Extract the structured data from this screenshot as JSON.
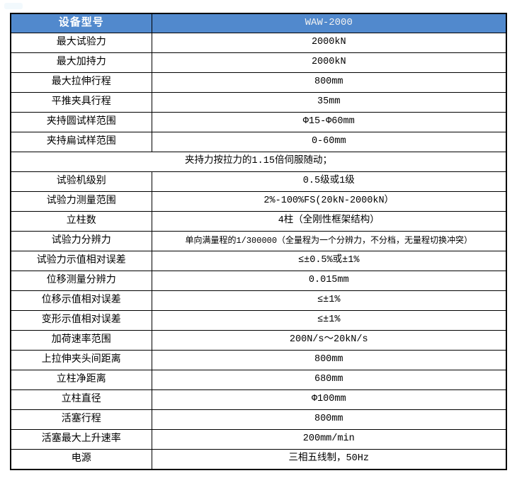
{
  "page": {
    "background_color": "#ffffff",
    "border_color": "#000000"
  },
  "table": {
    "header": {
      "label": "设备型号",
      "value": "WAW-2000",
      "background_color": "#5189cd",
      "text_color": "#ffffff"
    },
    "rows": [
      {
        "label": "最大试验力",
        "value": "2000kN"
      },
      {
        "label": "最大加持力",
        "value": "2000kN"
      },
      {
        "label": "最大拉伸行程",
        "value": "800mm"
      },
      {
        "label": "平推夹具行程",
        "value": "35mm"
      },
      {
        "label": "夹持圆试样范围",
        "value": "Φ15-Φ60mm"
      },
      {
        "label": "夹持扁试样范围",
        "value": "0-60mm"
      },
      {
        "type": "full",
        "value": "夹持力按拉力的1.15倍伺服随动；"
      },
      {
        "label": "试验机级别",
        "value": "0.5级或1级"
      },
      {
        "label": "试验力测量范围",
        "value": "2%-100%FS(20kN-2000kN）"
      },
      {
        "label": "立柱数",
        "value": "4柱（全刚性框架结构）"
      },
      {
        "label": "试验力分辨力",
        "value": "单向满量程的1/300000（全量程为一个分辨力，不分档，无量程切换冲突）",
        "small": true
      },
      {
        "label": "试验力示值相对误差",
        "value": "≤±0.5%或±1%"
      },
      {
        "label": "位移测量分辨力",
        "value": "0.015mm"
      },
      {
        "label": "位移示值相对误差",
        "value": "≤±1%"
      },
      {
        "label": "变形示值相对误差",
        "value": "≤±1%"
      },
      {
        "label": "加荷速率范围",
        "value": "200N/s～20kN/s"
      },
      {
        "label": "上拉伸夹头间距离",
        "value": "800mm"
      },
      {
        "label": "立柱净距离",
        "value": "680mm"
      },
      {
        "label": "立柱直径",
        "value": "Φ100mm"
      },
      {
        "label": "活塞行程",
        "value": "800mm"
      },
      {
        "label": "活塞最大上升速率",
        "value": "200mm/min"
      },
      {
        "label": "电源",
        "value": "三相五线制，50Hz"
      }
    ]
  }
}
